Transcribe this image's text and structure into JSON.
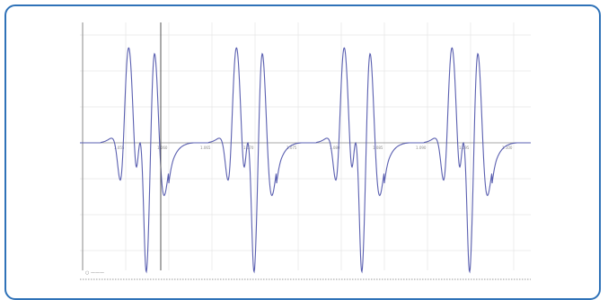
{
  "colors": {
    "frame_border": "#2f72b8",
    "trace": "#5a5fb0",
    "grid": "#e6e6e6",
    "axis": "#7a7a7a",
    "cursor": "#555555"
  },
  "scope": {
    "x_tick_labels": [
      "1.055",
      "1.060",
      "1.065",
      "1.070",
      "1.075",
      "1.080",
      "1.085",
      "1.090",
      "1.095",
      "1.100"
    ],
    "scale_readout": "○ ———"
  }
}
